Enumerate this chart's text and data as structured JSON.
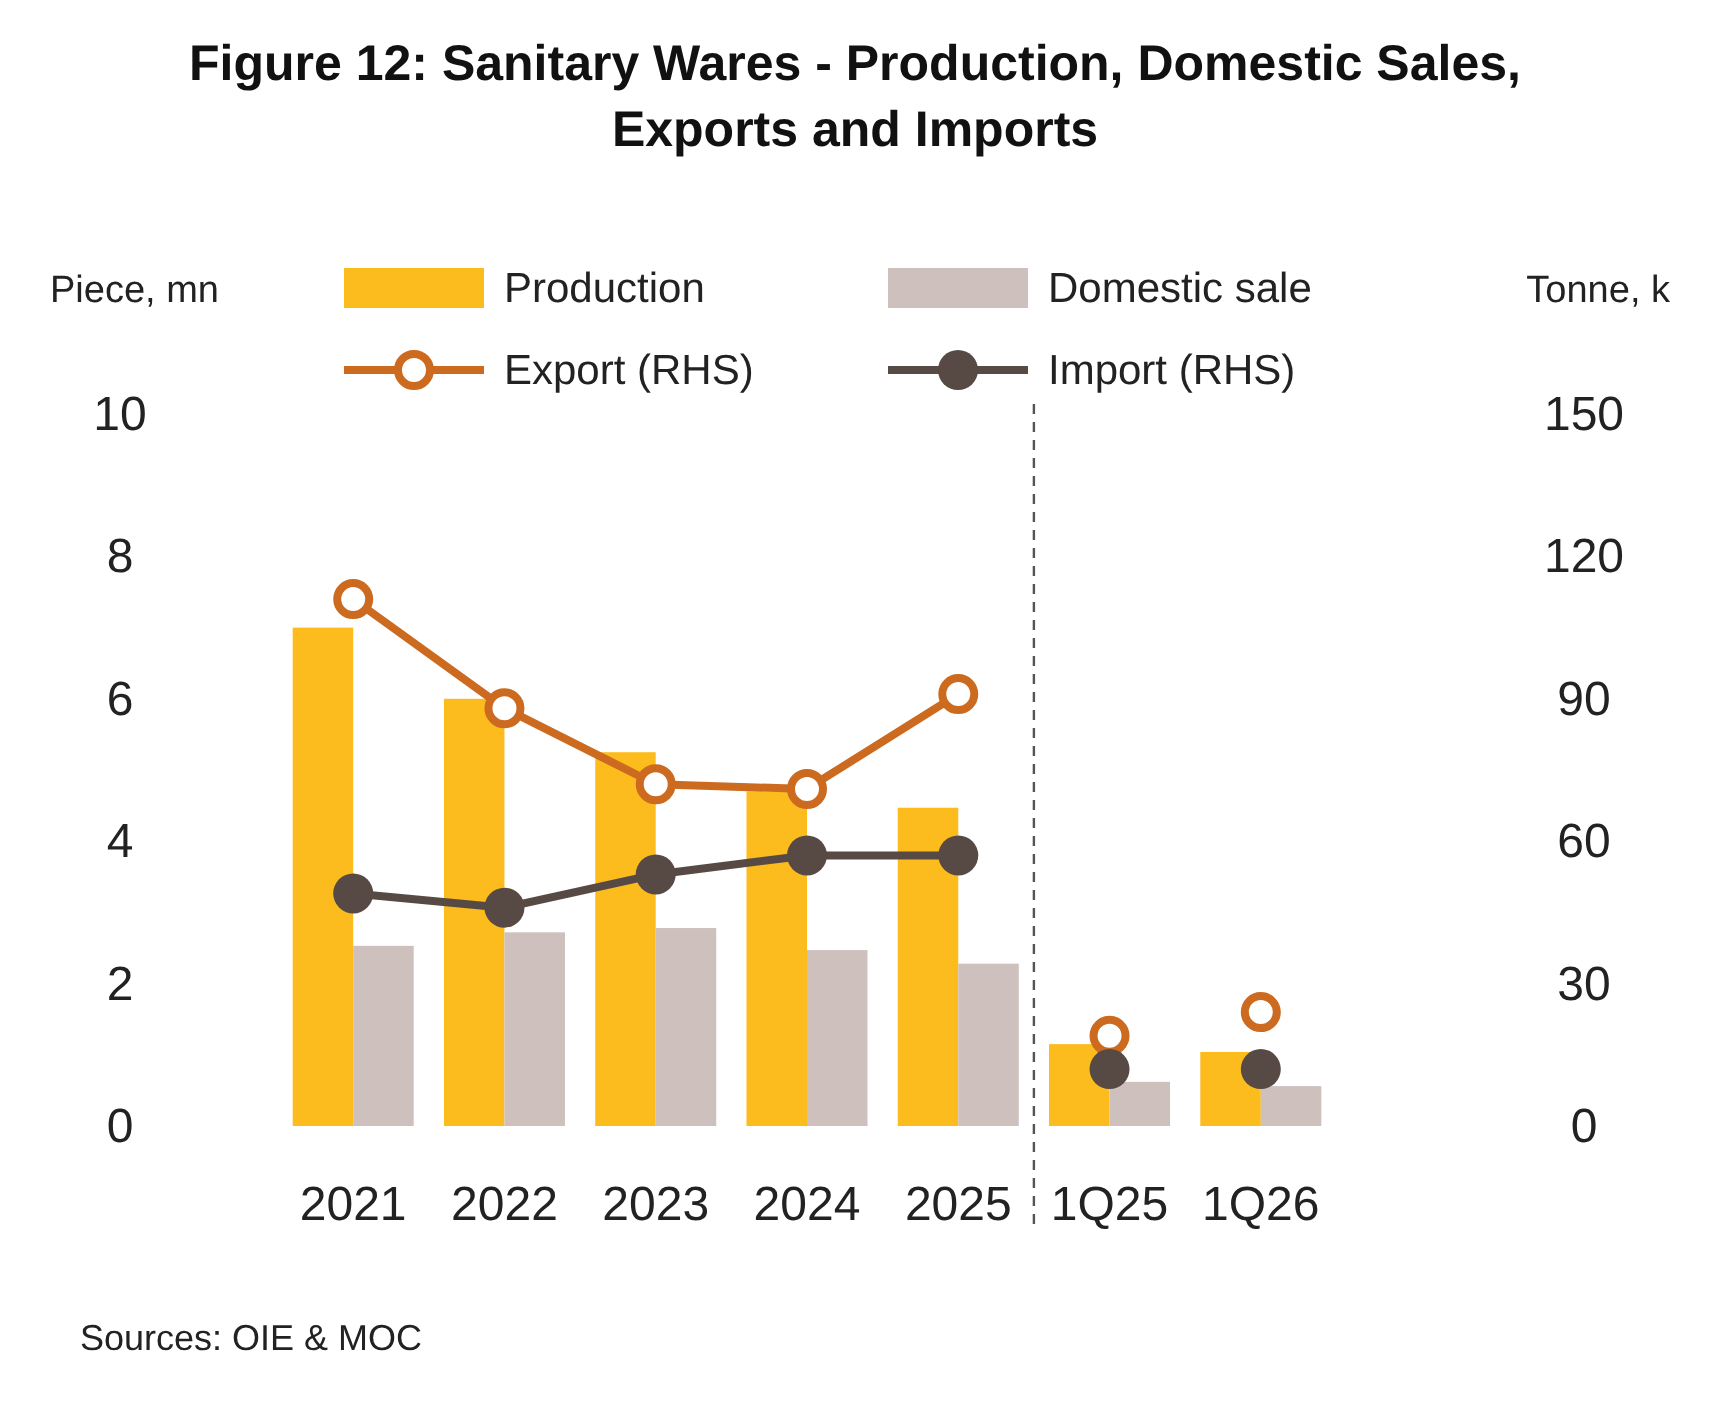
{
  "chart_data": {
    "type": "bar",
    "title": "Figure 12: Sanitary Wares - Production, Domestic Sales, Exports and Imports",
    "ylabel": "Piece, mn",
    "y2label": "Tonne, k",
    "categories": [
      "2021",
      "2022",
      "2023",
      "2024",
      "2025",
      "1Q25",
      "1Q26"
    ],
    "series": [
      {
        "name": "Production",
        "color": "#fcbc1e",
        "values": [
          7.0,
          6.0,
          5.25,
          4.7,
          4.47,
          1.15,
          1.04
        ]
      },
      {
        "name": "Domestic sale",
        "color": "#cdc0bd",
        "values": [
          2.53,
          2.72,
          2.78,
          2.47,
          2.28,
          0.62,
          0.56
        ]
      },
      {
        "name": "Export (RHS)",
        "type": "line",
        "axis": "y2",
        "color": "#cc6a1f",
        "marker": "circle",
        "values": [
          111,
          88,
          72,
          71,
          91,
          null,
          null
        ]
      },
      {
        "name": "Import (RHS)",
        "type": "line",
        "axis": "y2",
        "color": "#574a45",
        "marker": "circle",
        "values": [
          49,
          46,
          53,
          57,
          57,
          null,
          null
        ]
      },
      {
        "type": "scatter",
        "axis": "y2",
        "color": "#cc6a1f",
        "marker": "circle",
        "values": [
          null,
          null,
          null,
          null,
          null,
          19,
          24
        ]
      },
      {
        "type": "scatter",
        "axis": "y2",
        "color": "#574a45",
        "marker": "circle",
        "values": [
          null,
          null,
          null,
          null,
          null,
          12,
          12
        ]
      }
    ],
    "ylim": [
      0,
      10
    ],
    "yticks": [
      0,
      2,
      4,
      6,
      8,
      10
    ],
    "y2lim": [
      0,
      150
    ],
    "y2ticks": [
      0,
      30,
      60,
      90,
      120,
      150
    ],
    "legend": "top",
    "grid": false,
    "annotations": [
      "Sources: OIE & MOC"
    ]
  }
}
